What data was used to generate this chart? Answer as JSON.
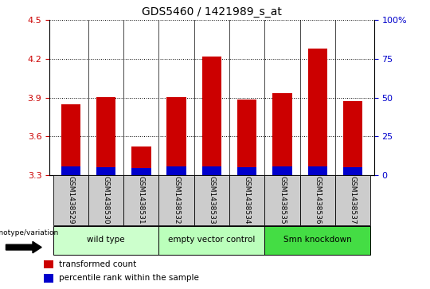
{
  "title": "GDS5460 / 1421989_s_at",
  "samples": [
    "GSM1438529",
    "GSM1438530",
    "GSM1438531",
    "GSM1438532",
    "GSM1438533",
    "GSM1438534",
    "GSM1438535",
    "GSM1438536",
    "GSM1438537"
  ],
  "red_values": [
    3.85,
    3.905,
    3.52,
    3.905,
    4.22,
    3.885,
    3.935,
    4.28,
    3.875
  ],
  "blue_values": [
    3.345,
    3.34,
    3.335,
    3.345,
    3.345,
    3.34,
    3.345,
    3.345,
    3.34
  ],
  "ymin": 3.3,
  "ymax": 4.5,
  "yticks": [
    3.3,
    3.6,
    3.9,
    4.2,
    4.5
  ],
  "right_yticks": [
    0,
    25,
    50,
    75,
    100
  ],
  "right_ytick_labels": [
    "0",
    "25",
    "50",
    "75",
    "100%"
  ],
  "groups": [
    {
      "label": "wild type",
      "cols": [
        0,
        1,
        2
      ],
      "color": "#ccffcc"
    },
    {
      "label": "empty vector control",
      "cols": [
        3,
        4,
        5
      ],
      "color": "#bbffbb"
    },
    {
      "label": "Smn knockdown",
      "cols": [
        6,
        7,
        8
      ],
      "color": "#44dd44"
    }
  ],
  "bar_color": "#cc0000",
  "blue_color": "#0000cc",
  "bar_width": 0.55,
  "tick_color_left": "#cc0000",
  "tick_color_right": "#0000cc",
  "legend_red_label": "transformed count",
  "legend_blue_label": "percentile rank within the sample",
  "genotype_label": "genotype/variation",
  "col_bg_color": "#cccccc"
}
